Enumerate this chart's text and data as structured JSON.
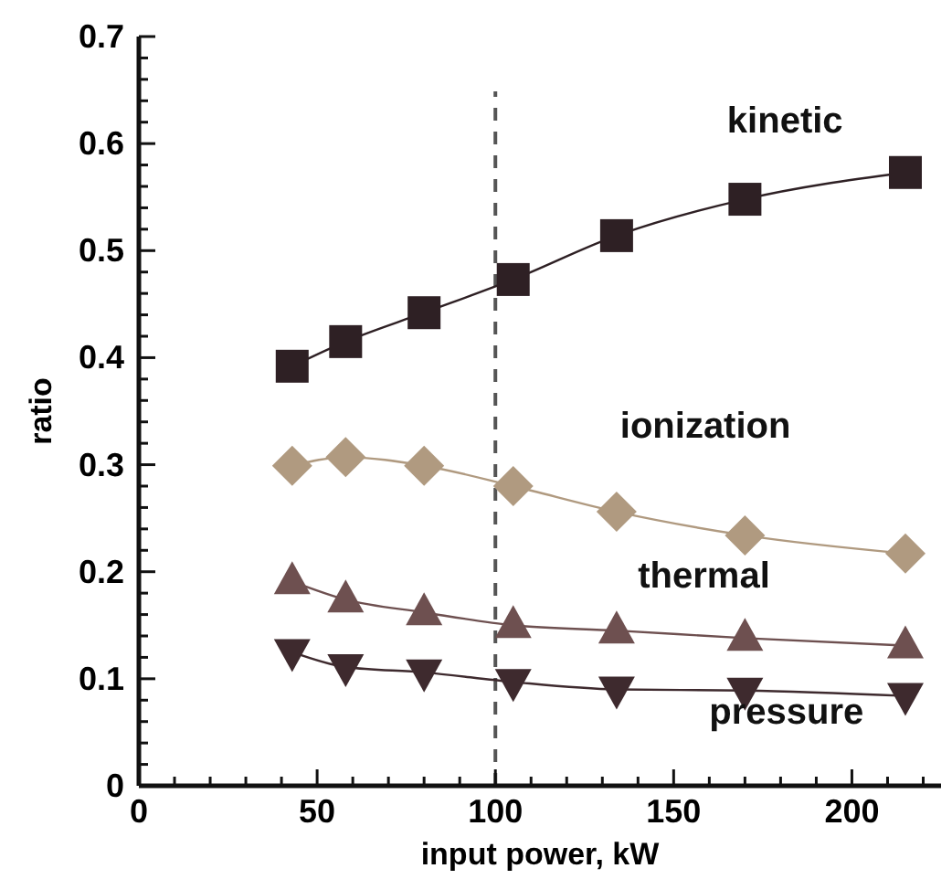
{
  "chart_data": {
    "type": "line",
    "xlabel": "input power, kW",
    "ylabel": "ratio",
    "xlim": [
      0,
      225
    ],
    "ylim": [
      0,
      0.7
    ],
    "xticks": [
      0,
      {
        "value": 10,
        "label": null
      },
      {
        "value": 20,
        "label": null
      },
      {
        "value": 30,
        "label": null
      },
      {
        "value": 40,
        "label": null
      },
      50,
      {
        "value": 60,
        "label": null
      },
      {
        "value": 70,
        "label": null
      },
      {
        "value": 80,
        "label": null
      },
      {
        "value": 90,
        "label": null
      },
      100,
      {
        "value": 110,
        "label": null
      },
      {
        "value": 120,
        "label": null
      },
      {
        "value": 130,
        "label": null
      },
      {
        "value": 140,
        "label": null
      },
      150,
      {
        "value": 160,
        "label": null
      },
      {
        "value": 170,
        "label": null
      },
      {
        "value": 180,
        "label": null
      },
      {
        "value": 190,
        "label": null
      },
      200,
      {
        "value": 210,
        "label": null
      },
      {
        "value": 220,
        "label": null
      }
    ],
    "yticks": [
      0,
      {
        "value": 0.02,
        "label": null
      },
      {
        "value": 0.04,
        "label": null
      },
      {
        "value": 0.06,
        "label": null
      },
      {
        "value": 0.08,
        "label": null
      },
      0.1,
      {
        "value": 0.12,
        "label": null
      },
      {
        "value": 0.14,
        "label": null
      },
      {
        "value": 0.16,
        "label": null
      },
      {
        "value": 0.18,
        "label": null
      },
      0.2,
      {
        "value": 0.22,
        "label": null
      },
      {
        "value": 0.24,
        "label": null
      },
      {
        "value": 0.26,
        "label": null
      },
      {
        "value": 0.28,
        "label": null
      },
      0.3,
      {
        "value": 0.32,
        "label": null
      },
      {
        "value": 0.34,
        "label": null
      },
      {
        "value": 0.36,
        "label": null
      },
      {
        "value": 0.38,
        "label": null
      },
      0.4,
      {
        "value": 0.42,
        "label": null
      },
      {
        "value": 0.44,
        "label": null
      },
      {
        "value": 0.46,
        "label": null
      },
      {
        "value": 0.48,
        "label": null
      },
      0.5,
      {
        "value": 0.52,
        "label": null
      },
      {
        "value": 0.54,
        "label": null
      },
      {
        "value": 0.56,
        "label": null
      },
      {
        "value": 0.58,
        "label": null
      },
      0.6,
      {
        "value": 0.62,
        "label": null
      },
      {
        "value": 0.64,
        "label": null
      },
      {
        "value": 0.66,
        "label": null
      },
      {
        "value": 0.68,
        "label": null
      },
      0.7
    ],
    "x": [
      43,
      58,
      80,
      105,
      134,
      170,
      215
    ],
    "grid": false,
    "line_style": "solid",
    "series": [
      {
        "name": "kinetic",
        "color": "#2e2024",
        "marker": "square",
        "values": [
          0.392,
          0.415,
          0.442,
          0.473,
          0.514,
          0.548,
          0.573
        ]
      },
      {
        "name": "ionization",
        "color": "#b09a80",
        "marker": "diamond",
        "values": [
          0.299,
          0.307,
          0.299,
          0.28,
          0.256,
          0.234,
          0.217
        ]
      },
      {
        "name": "thermal",
        "color": "#6e5050",
        "marker": "triangle",
        "values": [
          0.191,
          0.174,
          0.162,
          0.15,
          0.145,
          0.138,
          0.131
        ]
      },
      {
        "name": "pressure",
        "color": "#3e2a2e",
        "marker": "triangle-down",
        "values": [
          0.125,
          0.111,
          0.106,
          0.097,
          0.09,
          0.089,
          0.084
        ]
      }
    ],
    "ref_lines": [
      {
        "axis": "x",
        "value": 100,
        "color": "#555555",
        "line_style": "dashed"
      }
    ]
  }
}
